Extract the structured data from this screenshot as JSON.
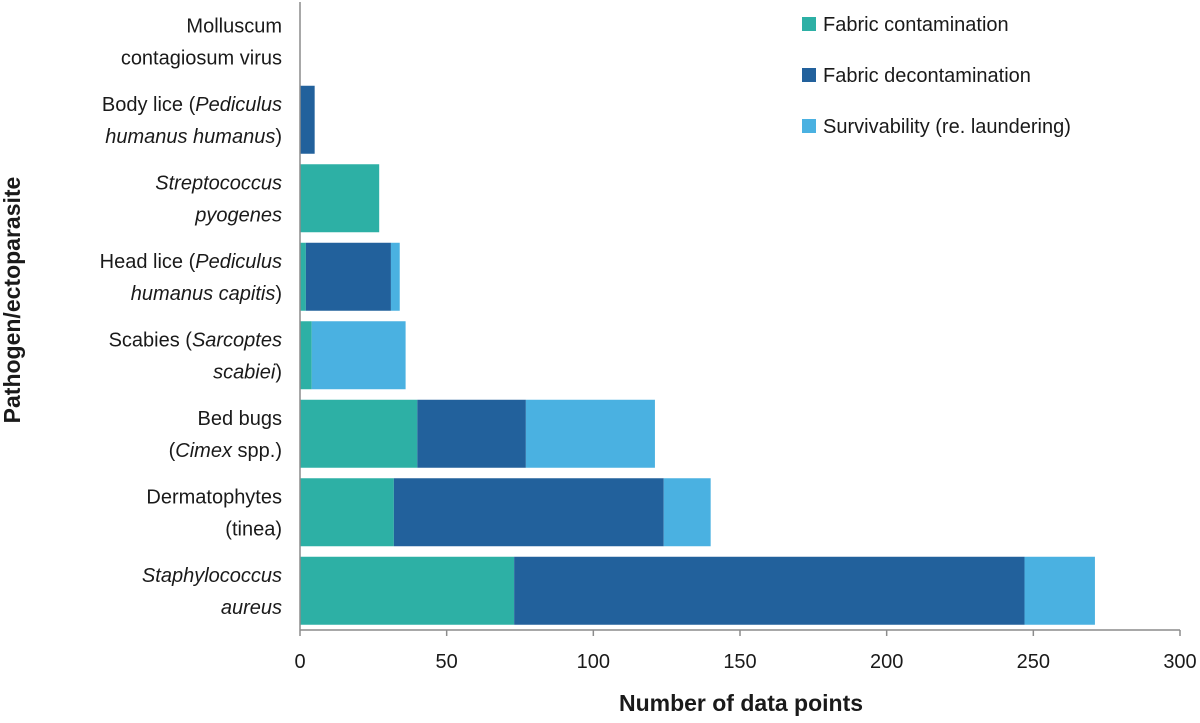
{
  "chart_data": {
    "type": "bar",
    "orientation": "horizontal",
    "stacked": true,
    "xlabel": "Number of data points",
    "ylabel": "Pathogen/ectoparasite",
    "xlim": [
      0,
      300
    ],
    "xticks": [
      0,
      50,
      100,
      150,
      200,
      250,
      300
    ],
    "grid": false,
    "legend_position": "top-right",
    "categories": [
      {
        "lines": [
          [
            {
              "t": "Molluscum",
              "i": false
            }
          ],
          [
            {
              "t": "contagiosum virus",
              "i": false
            }
          ]
        ]
      },
      {
        "lines": [
          [
            {
              "t": "Body lice (",
              "i": false
            },
            {
              "t": "Pediculus",
              "i": true
            }
          ],
          [
            {
              "t": "humanus humanus",
              "i": true
            },
            {
              "t": ")",
              "i": false
            }
          ]
        ]
      },
      {
        "lines": [
          [
            {
              "t": "Streptococcus",
              "i": true
            }
          ],
          [
            {
              "t": "pyogenes",
              "i": true
            }
          ]
        ]
      },
      {
        "lines": [
          [
            {
              "t": "Head lice (",
              "i": false
            },
            {
              "t": "Pediculus",
              "i": true
            }
          ],
          [
            {
              "t": "humanus capitis",
              "i": true
            },
            {
              "t": ")",
              "i": false
            }
          ]
        ]
      },
      {
        "lines": [
          [
            {
              "t": "Scabies (",
              "i": false
            },
            {
              "t": "Sarcoptes",
              "i": true
            }
          ],
          [
            {
              "t": "scabiei",
              "i": true
            },
            {
              "t": ")",
              "i": false
            }
          ]
        ]
      },
      {
        "lines": [
          [
            {
              "t": "Bed bugs",
              "i": false
            }
          ],
          [
            {
              "t": "(",
              "i": false
            },
            {
              "t": "Cimex",
              "i": true
            },
            {
              "t": " spp.)",
              "i": false
            }
          ]
        ]
      },
      {
        "lines": [
          [
            {
              "t": "Dermatophytes",
              "i": false
            }
          ],
          [
            {
              "t": "(tinea)",
              "i": false
            }
          ]
        ]
      },
      {
        "lines": [
          [
            {
              "t": "Staphylococcus",
              "i": true
            }
          ],
          [
            {
              "t": "aureus",
              "i": true
            }
          ]
        ]
      }
    ],
    "series": [
      {
        "name": "Fabric contamination",
        "color": "#2db0a5",
        "values": [
          0,
          0,
          27,
          2,
          4,
          40,
          32,
          73
        ]
      },
      {
        "name": "Fabric decontamination",
        "color": "#22619c",
        "values": [
          0,
          5,
          0,
          29,
          0,
          37,
          92,
          174
        ]
      },
      {
        "name": "Survivability (re. laundering)",
        "color": "#4ab1e1",
        "values": [
          0,
          0,
          0,
          3,
          32,
          44,
          16,
          24
        ]
      }
    ]
  }
}
